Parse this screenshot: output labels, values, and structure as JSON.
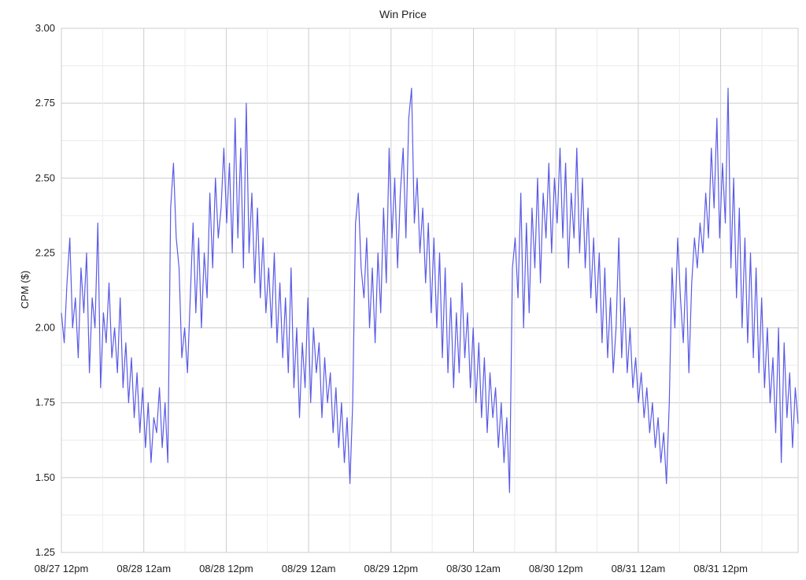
{
  "chart_data": {
    "type": "line",
    "title": "Win Price",
    "ylabel": "CPM ($)",
    "xlabel": "",
    "ylim": [
      1.25,
      3.0
    ],
    "yticks": [
      "3.00",
      "2.75",
      "2.50",
      "2.25",
      "2.00",
      "1.75",
      "1.50",
      "1.25"
    ],
    "xticks": [
      "08/27 12pm",
      "08/28 12am",
      "08/28 12pm",
      "08/29 12am",
      "08/29 12pm",
      "08/30 12am",
      "08/30 12pm",
      "08/31 12am",
      "08/31 12pm"
    ],
    "x_start": "08/27 12pm",
    "x_end": "09/01 6am",
    "grid": true,
    "series": [
      {
        "color": "#5a5ae6",
        "values": [
          2.05,
          1.95,
          2.15,
          2.3,
          2.0,
          2.1,
          1.9,
          2.2,
          2.05,
          2.25,
          1.85,
          2.1,
          2.0,
          2.35,
          1.8,
          2.05,
          1.95,
          2.15,
          1.9,
          2.0,
          1.85,
          2.1,
          1.8,
          1.95,
          1.75,
          1.9,
          1.7,
          1.85,
          1.65,
          1.8,
          1.6,
          1.75,
          1.55,
          1.7,
          1.65,
          1.8,
          1.6,
          1.75,
          1.55,
          2.4,
          2.55,
          2.3,
          2.2,
          1.9,
          2.0,
          1.85,
          2.1,
          2.35,
          2.05,
          2.3,
          2.0,
          2.25,
          2.1,
          2.45,
          2.2,
          2.5,
          2.3,
          2.4,
          2.6,
          2.35,
          2.55,
          2.25,
          2.7,
          2.3,
          2.6,
          2.2,
          2.75,
          2.25,
          2.45,
          2.15,
          2.4,
          2.1,
          2.3,
          2.05,
          2.2,
          2.0,
          2.25,
          1.95,
          2.15,
          1.9,
          2.1,
          1.85,
          2.2,
          1.8,
          2.0,
          1.7,
          1.95,
          1.8,
          2.1,
          1.75,
          2.0,
          1.85,
          1.95,
          1.7,
          1.9,
          1.75,
          1.85,
          1.65,
          1.8,
          1.6,
          1.75,
          1.55,
          1.7,
          1.48,
          1.75,
          2.35,
          2.45,
          2.2,
          2.1,
          2.3,
          2.0,
          2.2,
          1.95,
          2.25,
          2.05,
          2.4,
          2.15,
          2.6,
          2.3,
          2.5,
          2.2,
          2.45,
          2.6,
          2.3,
          2.7,
          2.8,
          2.35,
          2.5,
          2.25,
          2.4,
          2.15,
          2.35,
          2.05,
          2.3,
          2.0,
          2.25,
          1.9,
          2.2,
          1.85,
          2.1,
          1.8,
          2.05,
          1.85,
          2.15,
          1.9,
          2.05,
          1.8,
          2.0,
          1.75,
          1.95,
          1.7,
          1.9,
          1.65,
          1.85,
          1.7,
          1.8,
          1.6,
          1.75,
          1.55,
          1.7,
          1.45,
          2.2,
          2.3,
          2.1,
          2.45,
          2.0,
          2.35,
          2.05,
          2.4,
          2.2,
          2.5,
          2.15,
          2.45,
          2.3,
          2.55,
          2.25,
          2.5,
          2.35,
          2.6,
          2.3,
          2.55,
          2.2,
          2.45,
          2.3,
          2.6,
          2.25,
          2.5,
          2.2,
          2.4,
          2.1,
          2.3,
          2.05,
          2.25,
          1.95,
          2.2,
          1.9,
          2.1,
          1.85,
          2.0,
          2.3,
          1.9,
          2.1,
          1.85,
          2.0,
          1.8,
          1.9,
          1.75,
          1.85,
          1.7,
          1.8,
          1.65,
          1.75,
          1.6,
          1.7,
          1.55,
          1.65,
          1.48,
          1.75,
          2.2,
          2.0,
          2.3,
          2.1,
          1.95,
          2.2,
          1.85,
          2.15,
          2.3,
          2.2,
          2.35,
          2.25,
          2.45,
          2.3,
          2.6,
          2.4,
          2.7,
          2.3,
          2.55,
          2.35,
          2.8,
          2.2,
          2.5,
          2.1,
          2.4,
          2.0,
          2.3,
          1.95,
          2.25,
          1.9,
          2.2,
          1.85,
          2.1,
          1.8,
          2.0,
          1.75,
          1.9,
          1.65,
          2.0,
          1.55,
          1.95,
          1.7,
          1.85,
          1.6,
          1.8,
          1.68
        ]
      }
    ]
  }
}
